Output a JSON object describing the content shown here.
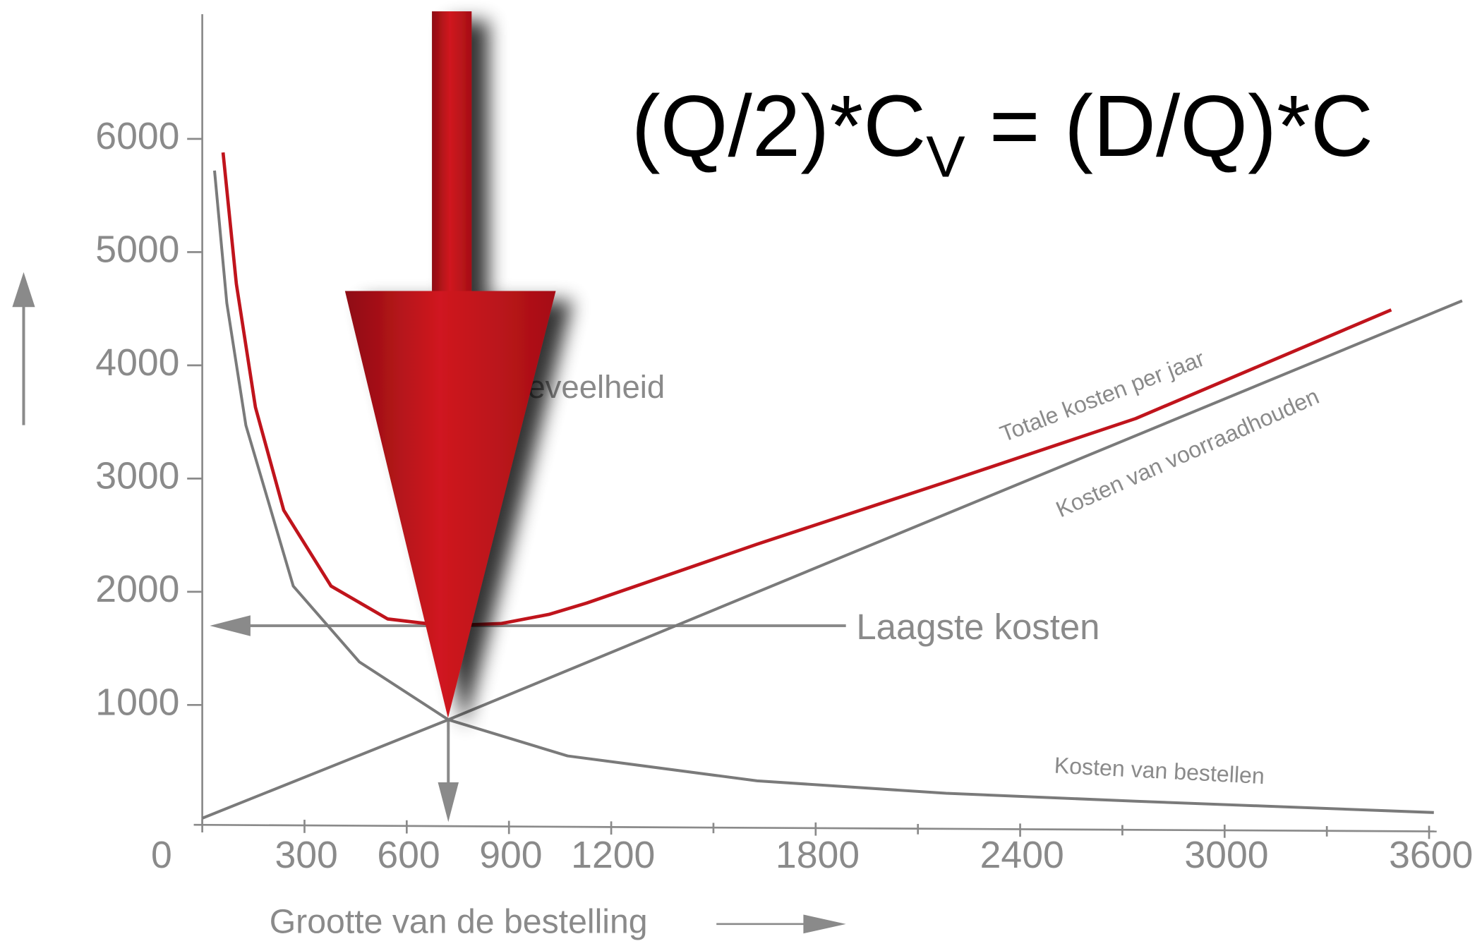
{
  "chart_data": {
    "type": "line",
    "formula": {
      "left": "(Q/2)*C",
      "sub": "V",
      "right": " = (D/Q)*C"
    },
    "x_label": "Grootte van de bestelling",
    "xlim": [
      0,
      3600
    ],
    "ylim": [
      0,
      6000
    ],
    "xticks": [
      0,
      300,
      600,
      900,
      1200,
      1800,
      2400,
      3000,
      3600
    ],
    "xminorticks": [
      1500,
      2100,
      2700,
      3300
    ],
    "yticks": [
      1000,
      2000,
      3000,
      4000,
      5000,
      6000
    ],
    "series": [
      {
        "name": "Totale kosten per jaar",
        "color": "#c0141c",
        "x": [
          61,
          100,
          156,
          239,
          378,
          544,
          711,
          878,
          1017,
          1128,
          1628,
          2183,
          2739,
          3489
        ],
        "values": [
          5880,
          4720,
          3630,
          2720,
          2050,
          1760,
          1700,
          1720,
          1800,
          1900,
          2420,
          2970,
          3530,
          4490
        ]
      },
      {
        "name": "Kosten van voorraadhouden",
        "color": "#7a7a7a",
        "x": [
          0,
          722,
          3697
        ],
        "values": [
          0,
          870,
          4570
        ]
      },
      {
        "name": "Kosten van bestellen",
        "color": "#7a7a7a",
        "x": [
          36,
          72,
          128,
          267,
          461,
          722,
          1072,
          1628,
          2183,
          2739,
          3614
        ],
        "values": [
          5720,
          4550,
          3470,
          2050,
          1380,
          870,
          550,
          330,
          220,
          150,
          50
        ]
      }
    ],
    "lowest_cost": {
      "label": "Laagste kosten",
      "value": 1700
    },
    "optimum": {
      "label": "eveelheid",
      "value": 722
    }
  }
}
